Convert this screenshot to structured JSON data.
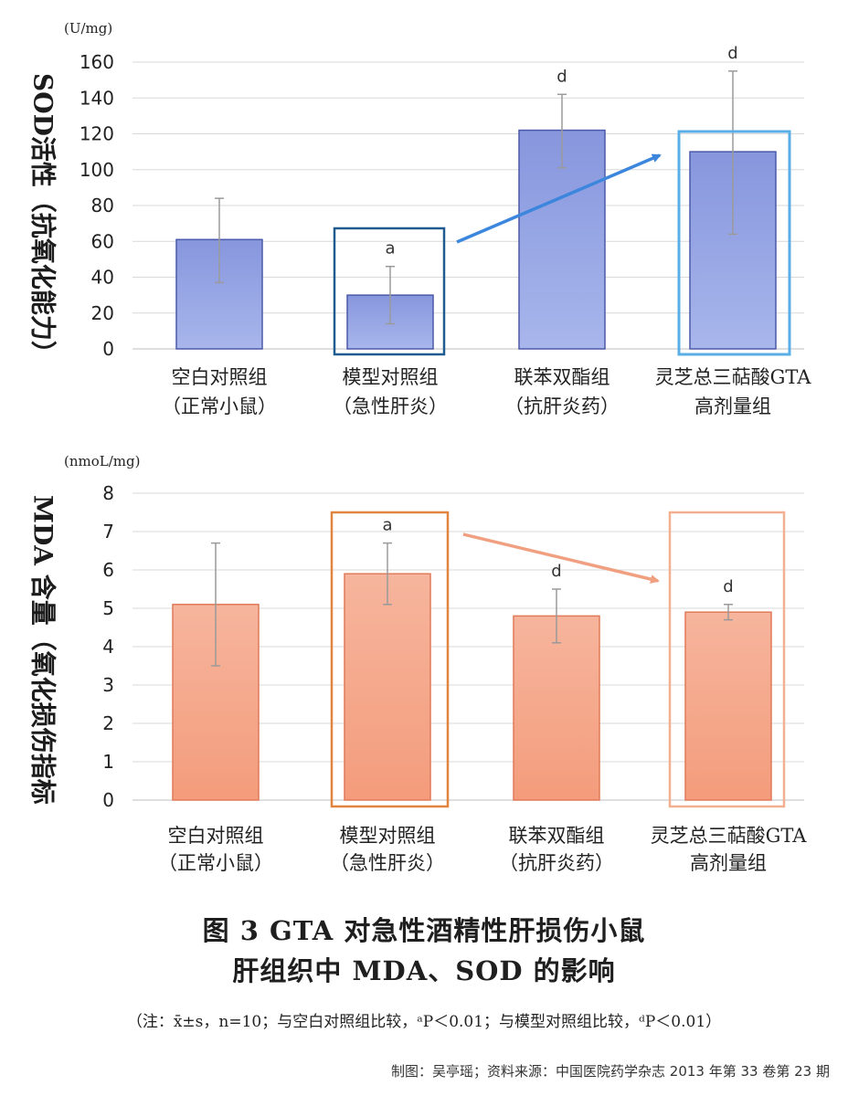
{
  "chart_data": [
    {
      "type": "bar",
      "ylabel": "SOD活性（抗氧化能力）",
      "unit": "(U/mg)",
      "ylim": [
        0,
        160
      ],
      "yticks": [
        "0",
        "20",
        "40",
        "60",
        "80",
        "100",
        "120",
        "140",
        "160"
      ],
      "categories": [
        [
          "空白对照组",
          "（正常小鼠）"
        ],
        [
          "模型对照组",
          "（急性肝炎）"
        ],
        [
          "联苯双酯组",
          "（抗肝炎药）"
        ],
        [
          "灵芝总三萜酸GTA",
          "高剂量组"
        ]
      ],
      "values": [
        61,
        30,
        122,
        110
      ],
      "error_high": [
        84,
        46,
        142,
        155
      ],
      "error_low": [
        37,
        14,
        101,
        64
      ],
      "sig_labels": [
        "",
        "a",
        "d",
        "d"
      ],
      "bar_color": "#8f9fe0",
      "bar_edge": "#4b5aa8",
      "highlight_color": "#1f5b8e",
      "highlight_color2": "#5aaee6",
      "arrow_color": "#3c86dd",
      "grid": true
    },
    {
      "type": "bar",
      "ylabel": "MDA 含量（氧化损伤指标",
      "unit": "(nmoL/mg)",
      "ylim": [
        0,
        8
      ],
      "yticks": [
        "0",
        "1",
        "2",
        "3",
        "4",
        "5",
        "6",
        "7",
        "8"
      ],
      "categories": [
        [
          "空白对照组",
          "（正常小鼠）"
        ],
        [
          "模型对照组",
          "（急性肝炎）"
        ],
        [
          "联苯双酯组",
          "（抗肝炎药）"
        ],
        [
          "灵芝总三萜酸GTA",
          "高剂量组"
        ]
      ],
      "values": [
        5.1,
        5.9,
        4.8,
        4.9
      ],
      "error_high": [
        6.7,
        6.7,
        5.5,
        5.1
      ],
      "error_low": [
        3.5,
        5.1,
        4.1,
        4.7
      ],
      "sig_labels": [
        "",
        "a",
        "d",
        "d"
      ],
      "bar_color": "#f3a487",
      "bar_edge": "#e07a58",
      "highlight_color": "#e0843f",
      "highlight_color2": "#f3b090",
      "arrow_color": "#f0a080",
      "grid": true
    }
  ],
  "caption_line1": "图 3 GTA 对急性酒精性肝损伤小鼠",
  "caption_line2": "肝组织中 MDA、SOD 的影响",
  "note": "（注：x̄±s，n=10；与空白对照组比较，ᵃP＜0.01；与模型对照组比较，ᵈP＜0.01）",
  "credit": "制图：吴亭瑶；资料来源：中国医院药学杂志 2013 年第 33 卷第 23 期"
}
